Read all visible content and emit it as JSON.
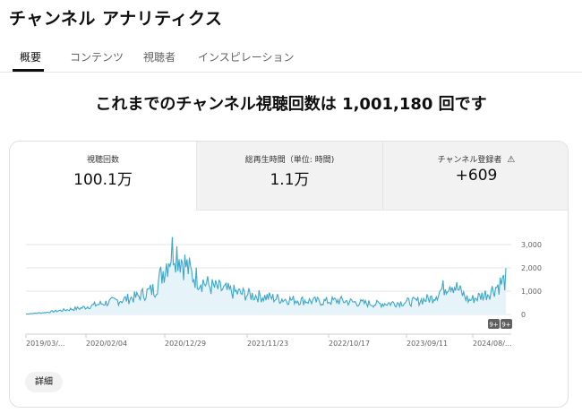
{
  "header": {
    "title": "チャンネル アナリティクス"
  },
  "tabs": [
    {
      "label": "概要",
      "active": true
    },
    {
      "label": "コンテンツ",
      "active": false
    },
    {
      "label": "視聴者",
      "active": false
    },
    {
      "label": "インスピレーション",
      "active": false
    }
  ],
  "headline": "これまでのチャンネル視聴回数は 1,001,180 回です",
  "metrics": [
    {
      "label": "視聴回数",
      "value": "100.1万"
    },
    {
      "label": "総再生時間（単位: 時間)",
      "value": "1.1万"
    },
    {
      "label": "チャンネル登録者",
      "value": "+609",
      "icon": "warning-icon"
    }
  ],
  "details_label": "詳細",
  "chart_data": {
    "type": "area",
    "y_ticks": [
      "3,000",
      "2,000",
      "1,000",
      "0"
    ],
    "ylim": [
      0,
      3000
    ],
    "x_labels": [
      "2019/03/...",
      "2020/02/04",
      "2020/12/29",
      "2021/11/23",
      "2022/10/17",
      "2023/09/11",
      "2024/08/..."
    ],
    "markers": [
      "9+",
      "9+"
    ],
    "x": [
      "2019/03",
      "2019/06",
      "2019/09",
      "2019/12",
      "2020/03",
      "2020/06",
      "2020/09",
      "2020/11",
      "2020/12",
      "2021/01",
      "2021/02",
      "2021/04",
      "2021/07",
      "2021/10",
      "2022/01",
      "2022/04",
      "2022/07",
      "2022/10",
      "2023/01",
      "2023/04",
      "2023/07",
      "2023/10",
      "2024/01",
      "2024/04",
      "2024/06",
      "2024/08",
      "2024/09"
    ],
    "series": [
      {
        "values": [
          20,
          80,
          180,
          280,
          450,
          600,
          750,
          1100,
          2900,
          1700,
          1200,
          1000,
          850,
          750,
          650,
          600,
          550,
          600,
          500,
          450,
          500,
          550,
          700,
          1400,
          600,
          900,
          1500
        ]
      }
    ],
    "colors": {
      "line": "#3ea6c8",
      "fill": "#e6f4f9",
      "grid": "#e5e5e5"
    },
    "grid": true
  }
}
